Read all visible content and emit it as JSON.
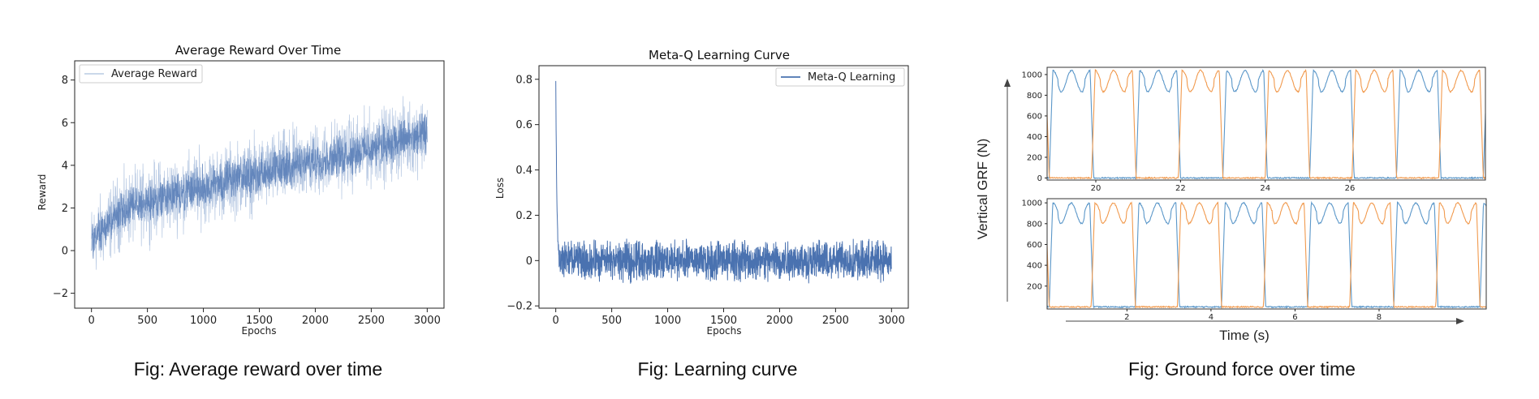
{
  "charts": [
    {
      "title": "Average Reward Over Time",
      "xlabel": "Epochs",
      "ylabel": "Reward",
      "legend": "Average Reward",
      "caption": "Fig: Average reward over time"
    },
    {
      "title": "Meta-Q Learning Curve",
      "xlabel": "Epochs",
      "ylabel": "Loss",
      "legend": "Meta-Q Learning",
      "caption": "Fig: Learning curve"
    },
    {
      "title": "",
      "xlabel": "Time (s)",
      "ylabel": "Vertical GRF (N)",
      "caption": "Fig: Ground force over time"
    }
  ],
  "chart_data": [
    {
      "type": "line",
      "title": "Average Reward Over Time",
      "xlabel": "Epochs",
      "ylabel": "Reward",
      "xlim": [
        -150,
        3150
      ],
      "ylim": [
        -2.7,
        8.9
      ],
      "xticks": [
        0,
        500,
        1000,
        1500,
        2000,
        2500,
        3000
      ],
      "yticks": [
        -2,
        0,
        2,
        4,
        6,
        8
      ],
      "legend_position": "top-left",
      "color": "#4a72b0",
      "series": [
        {
          "name": "Average Reward",
          "trend": {
            "x": [
              0,
              250,
              500,
              1000,
              1500,
              2000,
              2500,
              3000
            ],
            "y": [
              0.4,
              1.8,
              2.3,
              3.0,
              3.6,
              4.2,
              4.8,
              5.5
            ]
          },
          "noise_amplitude": 2.2,
          "n_points": 3000,
          "range": [
            -2.3,
            8.2
          ]
        }
      ]
    },
    {
      "type": "line",
      "title": "Meta-Q Learning Curve",
      "xlabel": "Epochs",
      "ylabel": "Loss",
      "xlim": [
        -150,
        3150
      ],
      "ylim": [
        -0.21,
        0.86
      ],
      "xticks": [
        0,
        500,
        1000,
        1500,
        2000,
        2500,
        3000
      ],
      "yticks": [
        -0.2,
        0.0,
        0.2,
        0.4,
        0.6,
        0.8
      ],
      "legend_position": "top-right",
      "color": "#4a72b0",
      "series": [
        {
          "name": "Meta-Q Learning",
          "initial_peak": 0.81,
          "decay_epochs": 30,
          "steady_mean": 0.0,
          "noise_amplitude": 0.08,
          "n_points": 3000,
          "range": [
            -0.17,
            0.81
          ]
        }
      ]
    },
    {
      "type": "line",
      "ylabel": "Vertical GRF (N)",
      "xlabel": "Time (s)",
      "panels": [
        {
          "xlim": [
            18.85,
            29.2
          ],
          "ylim": [
            -20,
            1070
          ],
          "xticks": [
            20,
            22,
            24,
            26
          ],
          "yticks": [
            0,
            200,
            400,
            600,
            800,
            1000
          ],
          "series": [
            {
              "color": "#5b97c9",
              "peak": 1040,
              "period": 2.05,
              "first_onset": 18.9,
              "stance": 1.05
            },
            {
              "color": "#f19a4e",
              "peak": 1040,
              "period": 2.05,
              "first_onset": 19.9,
              "stance": 1.05
            }
          ]
        },
        {
          "xlim": [
            0.1,
            10.55
          ],
          "ylim": [
            -20,
            1040
          ],
          "xticks": [
            2,
            4,
            6,
            8
          ],
          "yticks": [
            200,
            400,
            600,
            800,
            1000
          ],
          "series": [
            {
              "color": "#5b97c9",
              "peak": 1000,
              "period": 2.05,
              "first_onset": 0.15,
              "stance": 1.05
            },
            {
              "color": "#f19a4e",
              "peak": 1000,
              "period": 2.05,
              "first_onset": 1.15,
              "stance": 1.05
            }
          ]
        }
      ]
    }
  ]
}
